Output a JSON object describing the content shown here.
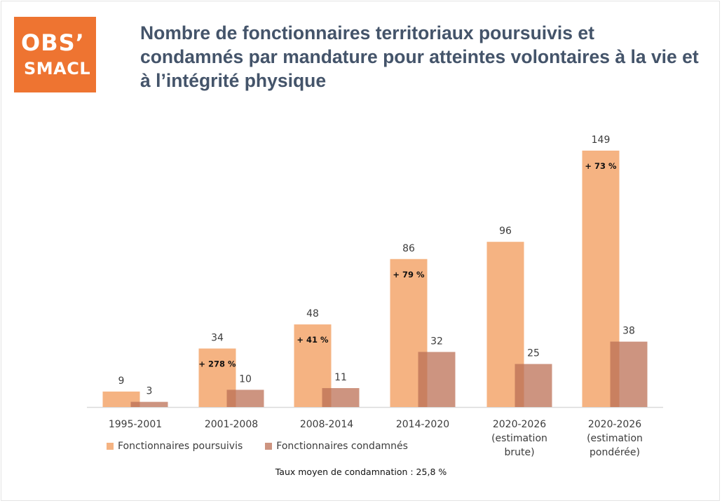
{
  "logo": {
    "line1": "OBS’",
    "line2": "SMACL",
    "color": "#ee7431"
  },
  "title": "Nombre de fonctionnaires territoriaux poursuivis et condamnés par mandature pour atteintes volontaires à la vie et à l’intégrité physique",
  "footnote": "Taux moyen de condamnation : 25,8 %",
  "chart_data": {
    "type": "bar",
    "title": "Nombre de fonctionnaires territoriaux poursuivis et condamnés par mandature pour atteintes volontaires à la vie et à l’intégrité physique",
    "categories": [
      [
        "1995-2001"
      ],
      [
        "2001-2008"
      ],
      [
        "2008-2014"
      ],
      [
        "2014-2020"
      ],
      [
        "2020-2026",
        "(estimation",
        "brute)"
      ],
      [
        "2020-2026",
        "(estimation",
        "pondérée)"
      ]
    ],
    "series": [
      {
        "name": "Fonctionnaires poursuivis",
        "values": [
          9,
          34,
          48,
          86,
          96,
          149
        ],
        "color": "#f5b382"
      },
      {
        "name": "Fonctionnaires condamnés",
        "values": [
          3,
          10,
          11,
          32,
          25,
          38
        ],
        "color": "#cd9480"
      }
    ],
    "annotations": [
      "",
      "+ 278 %",
      "+ 41 %",
      "+ 79 %",
      "",
      "+ 73 %"
    ],
    "ylim": [
      0,
      149
    ],
    "grid": false,
    "legend": "bottom-left",
    "overlap_color": "#c98060"
  }
}
